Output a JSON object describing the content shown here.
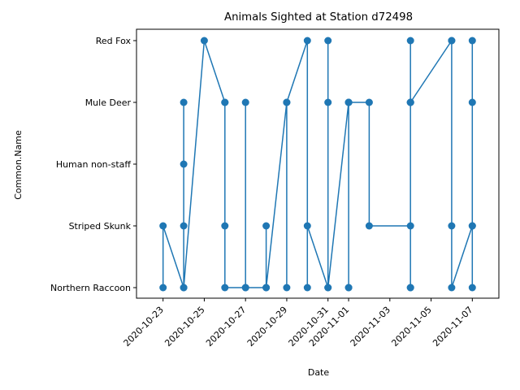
{
  "chart_data": {
    "type": "line",
    "title": "Animals Sighted at Station d72498",
    "xlabel": "Date",
    "ylabel": "Common.Name",
    "x_ticks": [
      "2020-10-23",
      "2020-10-25",
      "2020-10-27",
      "2020-10-29",
      "2020-10-31",
      "2020-11-01",
      "2020-11-03",
      "2020-11-05",
      "2020-11-07"
    ],
    "xlim": [
      "2020-10-22",
      "2020-11-08"
    ],
    "categories": [
      "Northern Raccoon",
      "Striped Skunk",
      "Human non-staff",
      "Mule Deer",
      "Red Fox"
    ],
    "grid": false,
    "legend": "none",
    "marker": "circle",
    "color": "#1f77b4",
    "series": [
      {
        "points": [
          [
            "2020-10-23",
            "Northern Raccoon"
          ],
          [
            "2020-10-23",
            "Striped Skunk"
          ],
          [
            "2020-10-24",
            "Northern Raccoon"
          ],
          [
            "2020-10-24",
            "Mule Deer"
          ],
          [
            "2020-10-24",
            "Human non-staff"
          ],
          [
            "2020-10-24",
            "Striped Skunk"
          ],
          [
            "2020-10-24",
            "Northern Raccoon"
          ],
          [
            "2020-10-25",
            "Red Fox"
          ],
          [
            "2020-10-26",
            "Mule Deer"
          ],
          [
            "2020-10-26",
            "Striped Skunk"
          ],
          [
            "2020-10-26",
            "Mule Deer"
          ],
          [
            "2020-10-26",
            "Northern Raccoon"
          ],
          [
            "2020-10-27",
            "Northern Raccoon"
          ],
          [
            "2020-10-27",
            "Mule Deer"
          ],
          [
            "2020-10-27",
            "Northern Raccoon"
          ],
          [
            "2020-10-28",
            "Northern Raccoon"
          ],
          [
            "2020-10-28",
            "Striped Skunk"
          ],
          [
            "2020-10-28",
            "Northern Raccoon"
          ],
          [
            "2020-10-29",
            "Mule Deer"
          ],
          [
            "2020-10-29",
            "Northern Raccoon"
          ],
          [
            "2020-10-29",
            "Mule Deer"
          ],
          [
            "2020-10-30",
            "Red Fox"
          ],
          [
            "2020-10-30",
            "Northern Raccoon"
          ],
          [
            "2020-10-30",
            "Striped Skunk"
          ],
          [
            "2020-10-31",
            "Northern Raccoon"
          ],
          [
            "2020-10-31",
            "Red Fox"
          ],
          [
            "2020-10-31",
            "Mule Deer"
          ],
          [
            "2020-10-31",
            "Northern Raccoon"
          ],
          [
            "2020-11-01",
            "Mule Deer"
          ],
          [
            "2020-11-01",
            "Northern Raccoon"
          ],
          [
            "2020-11-01",
            "Mule Deer"
          ],
          [
            "2020-11-01",
            "Northern Raccoon"
          ],
          [
            "2020-11-01",
            "Mule Deer"
          ],
          [
            "2020-11-02",
            "Mule Deer"
          ],
          [
            "2020-11-02",
            "Striped Skunk"
          ],
          [
            "2020-11-04",
            "Striped Skunk"
          ],
          [
            "2020-11-04",
            "Northern Raccoon"
          ],
          [
            "2020-11-04",
            "Mule Deer"
          ],
          [
            "2020-11-04",
            "Red Fox"
          ],
          [
            "2020-11-04",
            "Mule Deer"
          ],
          [
            "2020-11-04",
            "Northern Raccoon"
          ],
          [
            "2020-11-04",
            "Mule Deer"
          ],
          [
            "2020-11-06",
            "Red Fox"
          ],
          [
            "2020-11-06",
            "Striped Skunk"
          ],
          [
            "2020-11-06",
            "Red Fox"
          ],
          [
            "2020-11-06",
            "Northern Raccoon"
          ],
          [
            "2020-11-07",
            "Striped Skunk"
          ],
          [
            "2020-11-07",
            "Red Fox"
          ],
          [
            "2020-11-07",
            "Mule Deer"
          ],
          [
            "2020-11-07",
            "Northern Raccoon"
          ],
          [
            "2020-11-07",
            "Striped Skunk"
          ]
        ]
      }
    ]
  }
}
